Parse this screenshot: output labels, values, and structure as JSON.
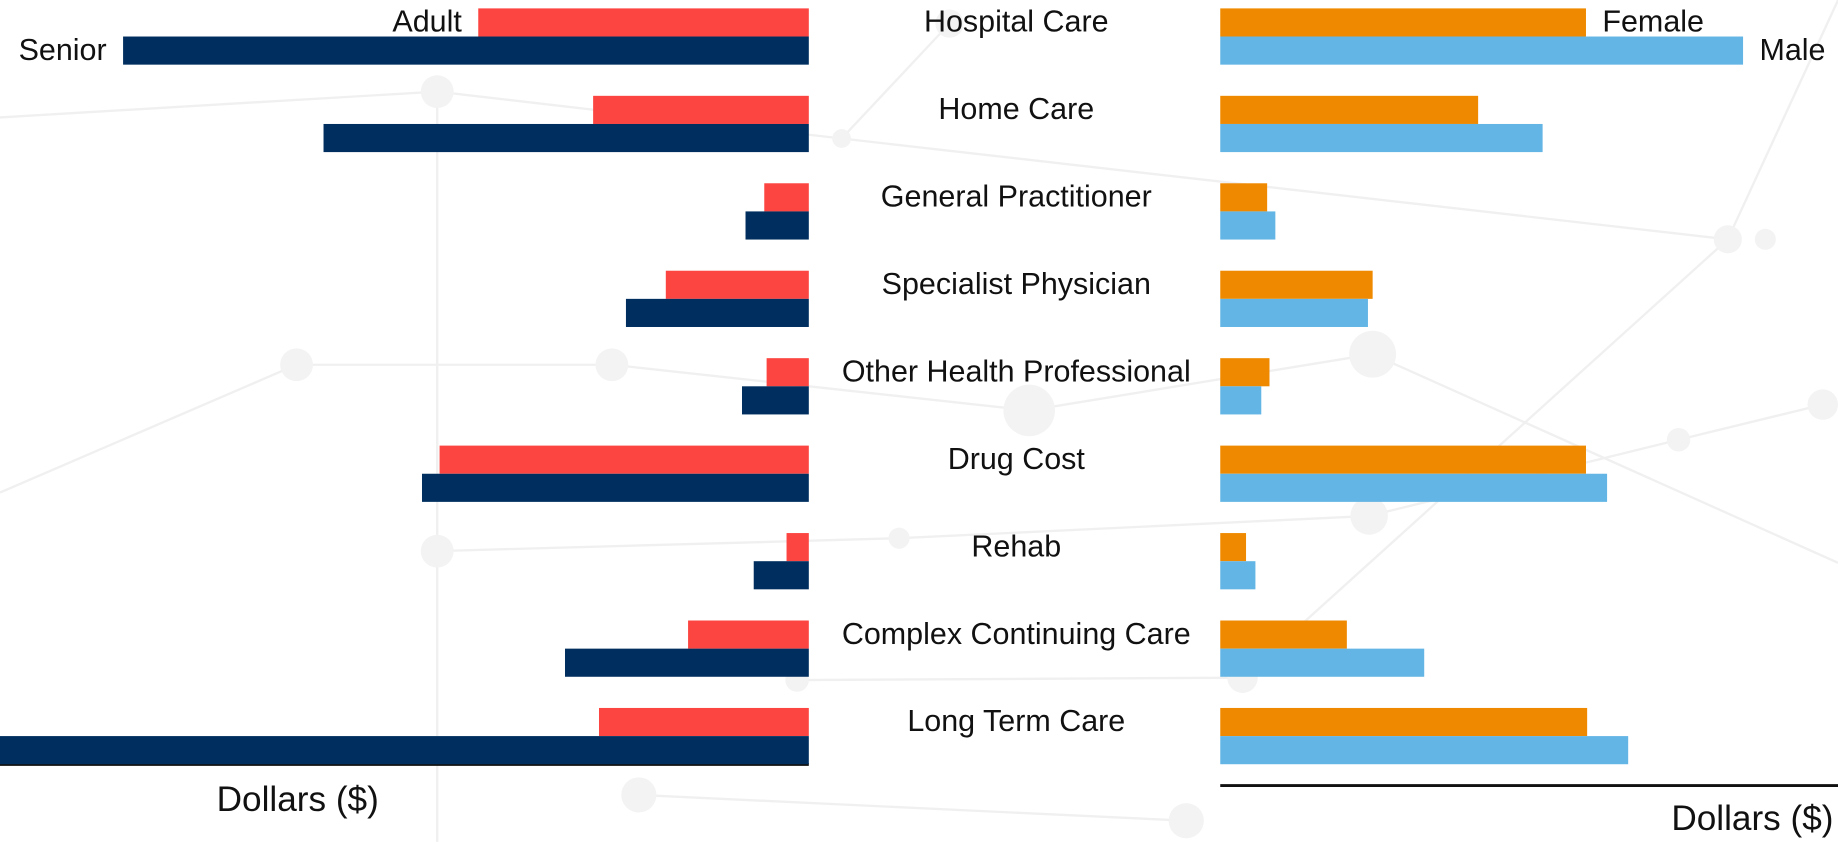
{
  "chart_data": [
    {
      "type": "bar",
      "orientation": "horizontal",
      "direction": "reversed",
      "categories": [
        "Hospital Care",
        "Home Care",
        "General Practitioner",
        "Specialist Physician",
        "Other Health Professional",
        "Drug Cost",
        "Rehab",
        "Complex Continuing Care",
        "Long Term Care"
      ],
      "x_label": "Dollars ($)",
      "xlim": [
        0,
        690
      ],
      "series": [
        {
          "name": "Adult",
          "color": "#fc4440",
          "values": [
            282,
            184,
            38,
            122,
            36,
            315,
            19,
            103,
            179
          ]
        },
        {
          "name": "Senior",
          "color": "#002f5f",
          "values": [
            585,
            414,
            54,
            156,
            57,
            330,
            47,
            208,
            690
          ]
        }
      ]
    },
    {
      "type": "bar",
      "orientation": "horizontal",
      "direction": "normal",
      "x_label": "Dollars ($)",
      "xlim": [
        0,
        527
      ],
      "series": [
        {
          "name": "Female",
          "color": "#ef8a00",
          "values": [
            312,
            220,
            40,
            130,
            42,
            312,
            22,
            108,
            313
          ]
        },
        {
          "name": "Male",
          "color": "#63b5e5",
          "values": [
            446,
            275,
            47,
            126,
            35,
            330,
            30,
            174,
            348
          ]
        }
      ]
    }
  ]
}
